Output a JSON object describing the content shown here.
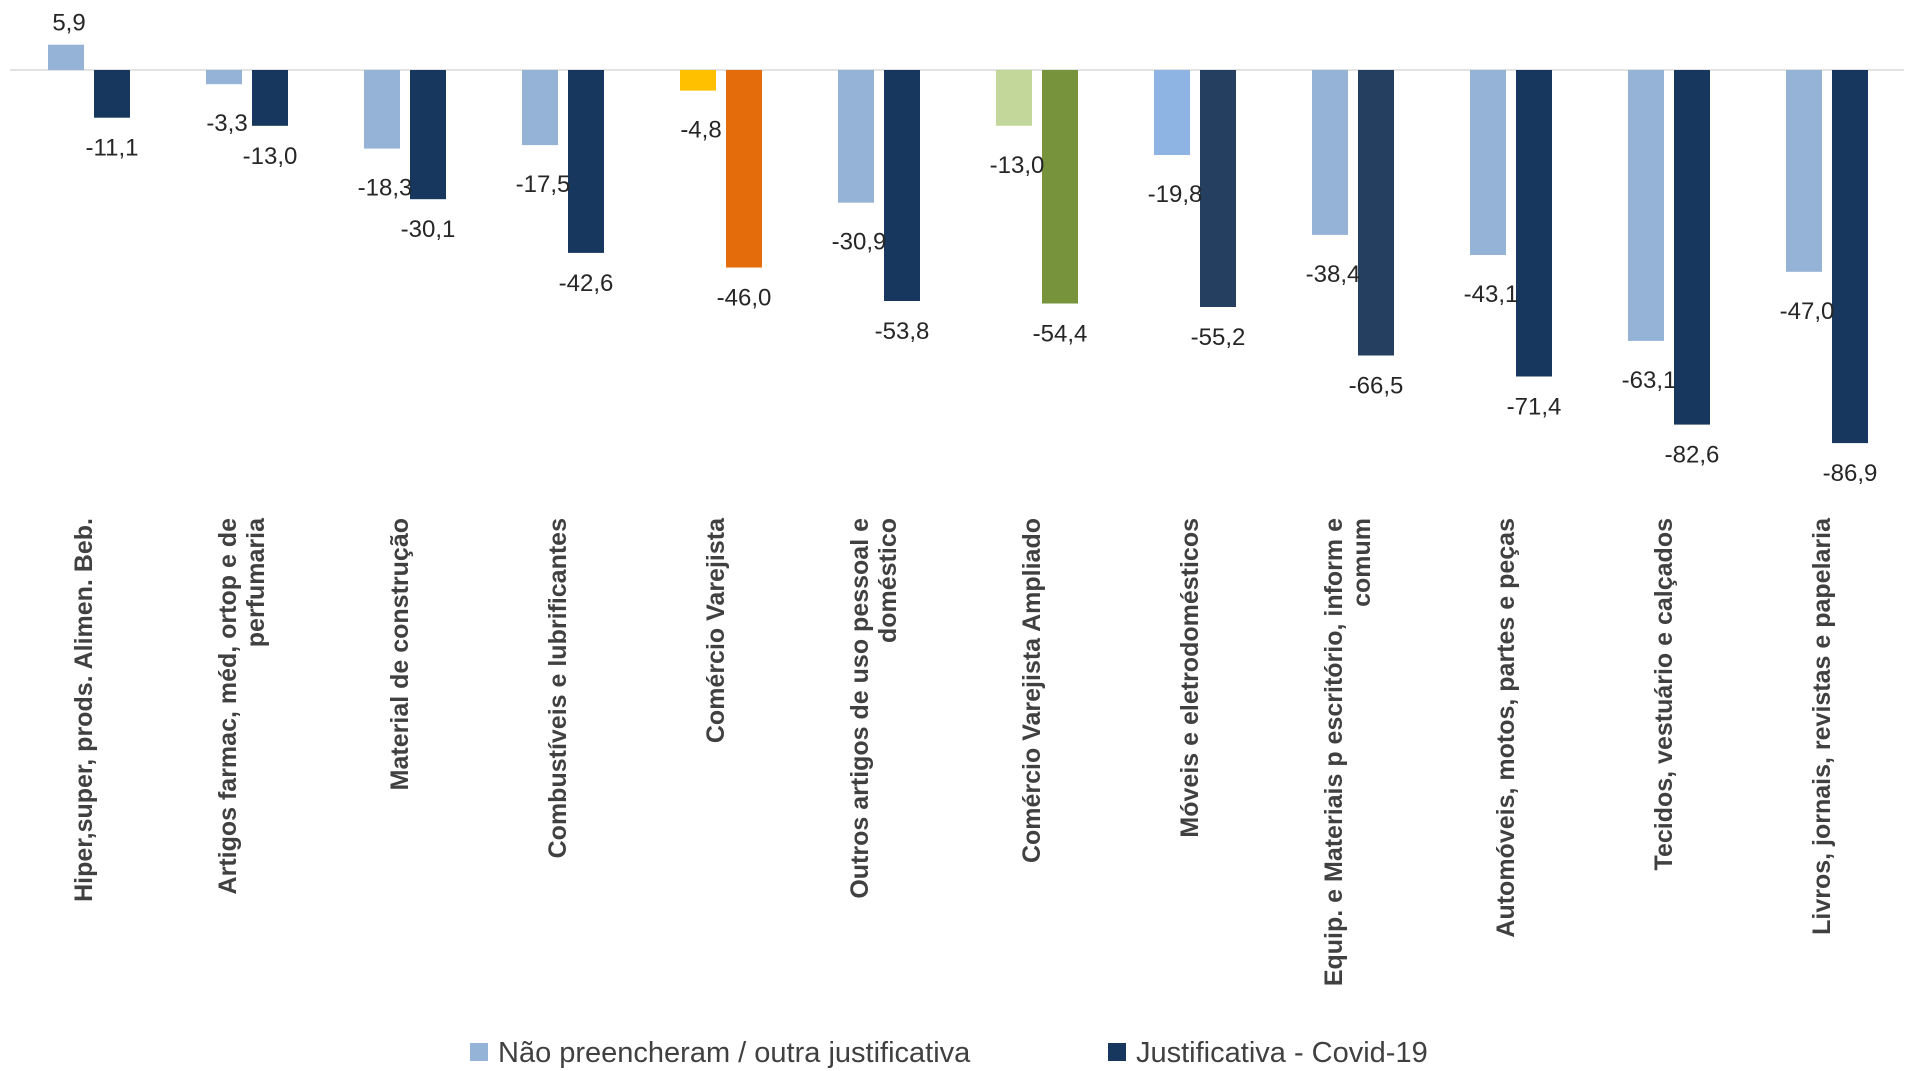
{
  "chart_data": {
    "type": "bar",
    "categories": [
      [
        "Hiper,super, prods. Alimen. Beb."
      ],
      [
        "Artigos farmac, méd, ortop e de",
        "perfumaria"
      ],
      [
        "Material de construção"
      ],
      [
        "Combustíveis e lubrificantes"
      ],
      [
        "Comércio Varejista"
      ],
      [
        "Outros artigos de uso pessoal e",
        "doméstico"
      ],
      [
        "Comércio Varejista Ampliado"
      ],
      [
        "Móveis e eletrodomésticos"
      ],
      [
        "Equip. e Materiais p escritório, inform e",
        "comum"
      ],
      [
        "Automóveis, motos, partes e peças"
      ],
      [
        "Tecidos, vestuário e calçados"
      ],
      [
        "Livros, jornais, revistas e papelaria"
      ]
    ],
    "series": [
      {
        "name": "Não preencheram / outra justificativa",
        "values": [
          5.9,
          -3.3,
          -18.3,
          -17.5,
          -4.8,
          -30.9,
          -13.0,
          -19.8,
          -38.4,
          -43.1,
          -63.1,
          -47.0
        ],
        "labels": [
          "5,9",
          "-3,3",
          "-18,3",
          "-17,5",
          "-4,8",
          "-30,9",
          "-13,0",
          "-19,8",
          "-38,4",
          "-43,1",
          "-63,1",
          "-47,0"
        ],
        "color": "#95b3d7",
        "colors": [
          "#95b3d7",
          "#95b3d7",
          "#95b3d7",
          "#95b3d7",
          "#ffc000",
          "#95b3d7",
          "#c4d79b",
          "#8eb4e3",
          "#95b3d7",
          "#95b3d7",
          "#95b3d7",
          "#95b3d7"
        ]
      },
      {
        "name": "Justificativa - Covid-19",
        "values": [
          -11.1,
          -13.0,
          -30.1,
          -42.6,
          -46.0,
          -53.8,
          -54.4,
          -55.2,
          -66.5,
          -71.4,
          -82.6,
          -86.9
        ],
        "labels": [
          "-11,1",
          "-13,0",
          "-30,1",
          "-42,6",
          "-46,0",
          "-53,8",
          "-54,4",
          "-55,2",
          "-66,5",
          "-71,4",
          "-82,6",
          "-86,9"
        ],
        "color": "#17375e",
        "colors": [
          "#17375e",
          "#17375e",
          "#17375e",
          "#17375e",
          "#e46c0a",
          "#17375e",
          "#77933c",
          "#243f60",
          "#243f60",
          "#17375e",
          "#17375e",
          "#17375e"
        ]
      }
    ],
    "ylim": [
      -90,
      10
    ],
    "grid": false,
    "legend_position": "bottom",
    "zero_line_color": "#d9d9d9"
  }
}
